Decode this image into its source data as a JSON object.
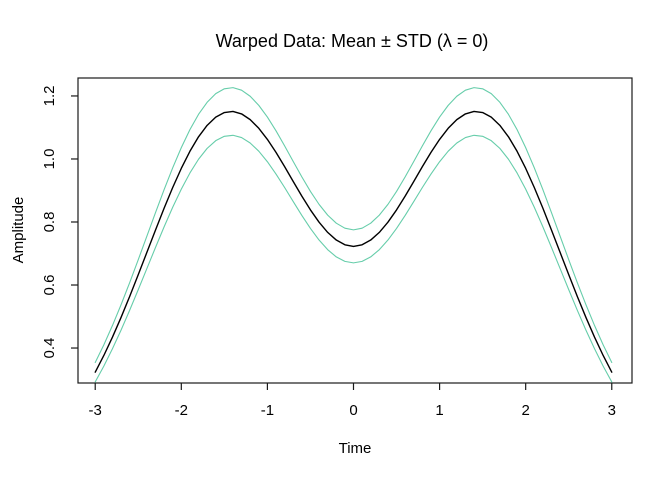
{
  "chart_data": {
    "type": "line",
    "title": "Warped Data: Mean ± STD (λ = 0)",
    "xlabel": "Time",
    "ylabel": "Amplitude",
    "xlim": [
      -3.2,
      3.235
    ],
    "ylim": [
      0.289,
      1.257
    ],
    "grid": false,
    "legend": "none",
    "x_ticks": [
      -3,
      -2,
      -1,
      0,
      1,
      2,
      3
    ],
    "x_tick_labels": [
      "-3",
      "-2",
      "-1",
      "0",
      "1",
      "2",
      "3"
    ],
    "y_ticks": [
      0.4,
      0.6,
      0.8,
      1.0,
      1.2
    ],
    "y_tick_labels": [
      "0.4",
      "0.6",
      "0.8",
      "1.0",
      "1.2"
    ],
    "axis_color": "#1a1a1a",
    "x": [
      -3,
      -2.9,
      -2.8,
      -2.7,
      -2.6,
      -2.5,
      -2.4,
      -2.3,
      -2.2,
      -2.1,
      -2,
      -1.9,
      -1.8,
      -1.7,
      -1.6,
      -1.5,
      -1.4,
      -1.3,
      -1.2,
      -1.1,
      -1,
      -0.9,
      -0.8,
      -0.7,
      -0.6,
      -0.5,
      -0.4,
      -0.3,
      -0.2,
      -0.1,
      0,
      0.1,
      0.2,
      0.3,
      0.4,
      0.5,
      0.6,
      0.7,
      0.8,
      0.9,
      1,
      1.1,
      1.2,
      1.3,
      1.4,
      1.5,
      1.6,
      1.7,
      1.8,
      1.9,
      2,
      2.1,
      2.2,
      2.3,
      2.4,
      2.5,
      2.6,
      2.7,
      2.8,
      2.9,
      3
    ],
    "series": [
      {
        "name": "mean",
        "color": "#000000",
        "stroke_width": 1.4,
        "values": [
          0.3233,
          0.3763,
          0.4345,
          0.4971,
          0.5636,
          0.6329,
          0.7035,
          0.7743,
          0.8435,
          0.9094,
          0.9702,
          1.0244,
          1.0704,
          1.1068,
          1.1327,
          1.1474,
          1.1508,
          1.1431,
          1.1249,
          1.0974,
          1.0621,
          1.0208,
          0.9756,
          0.9285,
          0.882,
          0.8383,
          0.7993,
          0.767,
          0.7427,
          0.7277,
          0.7226,
          0.7277,
          0.7427,
          0.767,
          0.7993,
          0.8383,
          0.882,
          0.9285,
          0.9756,
          1.0208,
          1.0621,
          1.0974,
          1.1249,
          1.1431,
          1.1508,
          1.1474,
          1.1327,
          1.1068,
          1.0704,
          1.0244,
          0.9702,
          0.9094,
          0.8435,
          0.7743,
          0.7035,
          0.6329,
          0.5636,
          0.4971,
          0.4345,
          0.3763,
          0.3233
        ]
      },
      {
        "name": "mean_plus_std",
        "color": "#66CDAA",
        "stroke_width": 1.1,
        "values": [
          0.3542,
          0.41,
          0.4714,
          0.5374,
          0.6074,
          0.6805,
          0.7549,
          0.8295,
          0.9025,
          0.9719,
          1.036,
          1.0932,
          1.1416,
          1.18,
          1.2073,
          1.2228,
          1.2264,
          1.2183,
          1.1991,
          1.1701,
          1.1329,
          1.0894,
          1.0417,
          0.9921,
          0.9431,
          0.897,
          0.8559,
          0.8218,
          0.7962,
          0.7804,
          0.775,
          0.7804,
          0.7962,
          0.8218,
          0.8559,
          0.897,
          0.9431,
          0.9921,
          1.0417,
          1.0894,
          1.1329,
          1.1701,
          1.1991,
          1.2183,
          1.2264,
          1.2228,
          1.2073,
          1.18,
          1.1416,
          1.0932,
          1.036,
          0.9719,
          0.9025,
          0.8295,
          0.7549,
          0.6805,
          0.6074,
          0.5374,
          0.4714,
          0.41,
          0.3542
        ]
      },
      {
        "name": "mean_minus_std",
        "color": "#66CDAA",
        "stroke_width": 1.1,
        "values": [
          0.2924,
          0.3426,
          0.3976,
          0.4568,
          0.5198,
          0.5853,
          0.6521,
          0.7191,
          0.7845,
          0.8469,
          0.9044,
          0.9556,
          0.9992,
          1.0336,
          1.0581,
          1.072,
          1.0752,
          1.0679,
          1.0507,
          1.0247,
          0.9913,
          0.9522,
          0.9095,
          0.8649,
          0.8209,
          0.7796,
          0.7427,
          0.7122,
          0.6892,
          0.675,
          0.6702,
          0.675,
          0.6892,
          0.7122,
          0.7427,
          0.7796,
          0.8209,
          0.8649,
          0.9095,
          0.9522,
          0.9913,
          1.0247,
          1.0507,
          1.0679,
          1.0752,
          1.072,
          1.0581,
          1.0336,
          0.9992,
          0.9556,
          0.9044,
          0.8469,
          0.7845,
          0.7191,
          0.6521,
          0.5853,
          0.5198,
          0.4568,
          0.3976,
          0.3426,
          0.2924
        ]
      }
    ]
  }
}
